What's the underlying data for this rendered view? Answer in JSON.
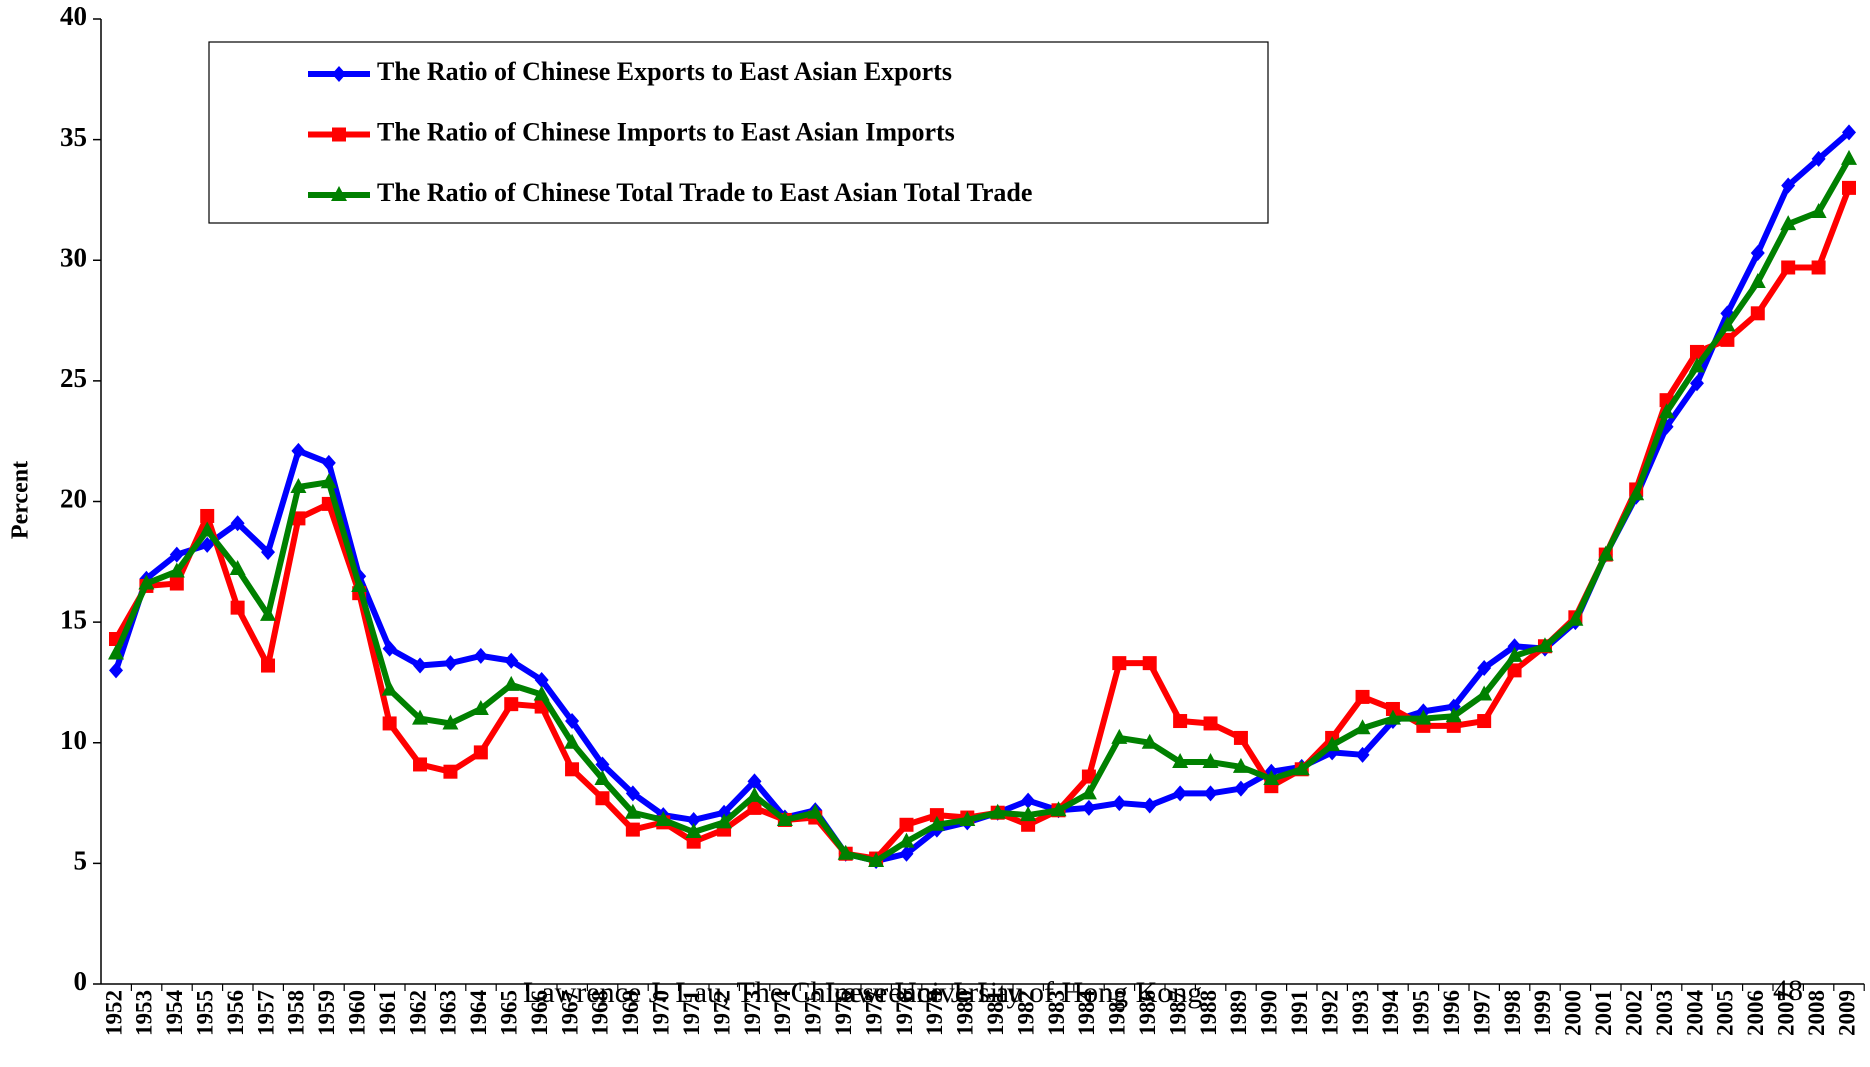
{
  "chart_data": {
    "type": "line",
    "ylabel": "Percent",
    "categories": [
      "1952",
      "1953",
      "1954",
      "1955",
      "1956",
      "1957",
      "1958",
      "1959",
      "1960",
      "1961",
      "1962",
      "1963",
      "1964",
      "1965",
      "1966",
      "1967",
      "1968",
      "1969",
      "1970",
      "1971",
      "1972",
      "1973",
      "1974",
      "1975",
      "1976",
      "1977",
      "1978",
      "1979",
      "1980",
      "1981",
      "1982",
      "1983",
      "1984",
      "1985",
      "1986",
      "1987",
      "1988",
      "1989",
      "1990",
      "1991",
      "1992",
      "1993",
      "1994",
      "1995",
      "1996",
      "1997",
      "1998",
      "1999",
      "2000",
      "2001",
      "2002",
      "2003",
      "2004",
      "2005",
      "2006",
      "2007",
      "2008",
      "2009"
    ],
    "series": [
      {
        "name": "The Ratio of Chinese Exports to East Asian Exports",
        "color": "#0000ff",
        "marker": "diamond",
        "values": [
          13.0,
          16.8,
          17.8,
          18.2,
          19.1,
          17.9,
          22.1,
          21.6,
          16.9,
          13.9,
          13.2,
          13.3,
          13.6,
          13.4,
          12.6,
          10.9,
          9.1,
          7.9,
          7.0,
          6.8,
          7.1,
          8.4,
          6.9,
          7.2,
          5.4,
          5.1,
          5.4,
          6.4,
          6.7,
          7.1,
          7.6,
          7.2,
          7.3,
          7.5,
          7.4,
          7.9,
          7.9,
          8.1,
          8.8,
          9.0,
          9.6,
          9.5,
          10.9,
          11.3,
          11.5,
          13.1,
          14.0,
          13.9,
          15.0,
          17.8,
          20.2,
          23.1,
          24.9,
          27.8,
          30.3,
          33.1,
          34.2,
          35.3
        ]
      },
      {
        "name": "The Ratio of Chinese Imports to East Asian Imports",
        "color": "#ff0000",
        "marker": "square",
        "values": [
          14.3,
          16.5,
          16.6,
          19.4,
          15.6,
          13.2,
          19.3,
          19.9,
          16.2,
          10.8,
          9.1,
          8.8,
          9.6,
          11.6,
          11.5,
          8.9,
          7.7,
          6.4,
          6.7,
          5.9,
          6.4,
          7.3,
          6.8,
          6.9,
          5.4,
          5.2,
          6.6,
          7.0,
          6.9,
          7.1,
          6.6,
          7.2,
          8.6,
          13.3,
          13.3,
          10.9,
          10.8,
          10.2,
          8.2,
          8.9,
          10.2,
          11.9,
          11.4,
          10.7,
          10.7,
          10.9,
          13.0,
          14.0,
          15.2,
          17.8,
          20.5,
          24.2,
          26.2,
          26.7,
          27.8,
          29.7,
          29.7,
          33.0
        ]
      },
      {
        "name": "The Ratio of Chinese Total Trade to East Asian Total Trade",
        "color": "#008000",
        "marker": "triangle",
        "values": [
          13.7,
          16.6,
          17.1,
          18.8,
          17.2,
          15.3,
          20.6,
          20.8,
          16.5,
          12.2,
          11.0,
          10.8,
          11.4,
          12.4,
          12.0,
          10.0,
          8.5,
          7.1,
          6.8,
          6.3,
          6.7,
          7.8,
          6.8,
          7.1,
          5.4,
          5.1,
          5.9,
          6.6,
          6.8,
          7.1,
          7.0,
          7.2,
          7.9,
          10.2,
          10.0,
          9.2,
          9.2,
          9.0,
          8.5,
          8.9,
          9.9,
          10.6,
          11.0,
          11.0,
          11.1,
          12.0,
          13.6,
          14.0,
          15.1,
          17.8,
          20.3,
          23.7,
          25.6,
          27.3,
          29.1,
          31.5,
          32.0,
          34.2
        ]
      }
    ],
    "ylim": [
      0,
      40
    ],
    "yticks": [
      0,
      5,
      10,
      15,
      20,
      25,
      30,
      35,
      40
    ],
    "legend": "upper left",
    "annotations": [
      "Lawrence J. Lau, The Chinese University of Hong Kong",
      "Lawrence J. Lau",
      "48"
    ]
  }
}
